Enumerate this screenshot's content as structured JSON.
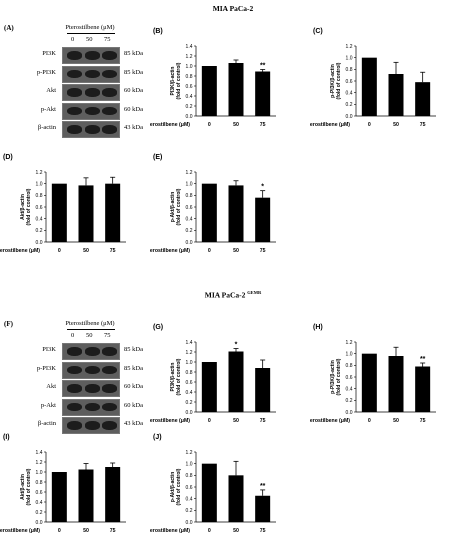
{
  "sections": [
    {
      "title": "MIA PaCa-2",
      "sup": ""
    },
    {
      "title": "MIA PaCa-2",
      "sup": "GEMR"
    }
  ],
  "blots": [
    {
      "panel": "(A)",
      "header": "Pterostilbene (μM)",
      "doses": [
        "0",
        "50",
        "75"
      ],
      "rows": [
        {
          "protein": "PI3K",
          "kda": "85 kDa"
        },
        {
          "protein": "p-PI3K",
          "kda": "85 kDa"
        },
        {
          "protein": "Akt",
          "kda": "60 kDa"
        },
        {
          "protein": "p-Akt",
          "kda": "60 kDa"
        },
        {
          "protein": "β-actin",
          "kda": "43 kDa"
        }
      ]
    },
    {
      "panel": "(F)",
      "header": "Pterostilbene (μM)",
      "doses": [
        "0",
        "50",
        "75"
      ],
      "rows": [
        {
          "protein": "PI3K",
          "kda": "85 kDa"
        },
        {
          "protein": "p-PI3K",
          "kda": "85 kDa"
        },
        {
          "protein": "Akt",
          "kda": "60 kDa"
        },
        {
          "protein": "p-Akt",
          "kda": "60 kDa"
        },
        {
          "protein": "β-actin",
          "kda": "43 kDa"
        }
      ]
    }
  ],
  "chart_data": [
    {
      "panel": "(B)",
      "type": "bar",
      "categories": [
        "0",
        "50",
        "75"
      ],
      "values": [
        1.0,
        1.06,
        0.89
      ],
      "errors": [
        0,
        0.06,
        0.04
      ],
      "sig": [
        "",
        "",
        "**"
      ],
      "ylabel": "PI3K/β-actin (fold of control)",
      "xlabel": "Pterostilbene (μM)",
      "ylim": [
        0,
        1.4
      ],
      "yticks": [
        "0.0",
        "0.2",
        "0.4",
        "0.6",
        "0.8",
        "1.0",
        "1.2",
        "1.4"
      ]
    },
    {
      "panel": "(C)",
      "type": "bar",
      "categories": [
        "0",
        "50",
        "75"
      ],
      "values": [
        1.0,
        0.72,
        0.58
      ],
      "errors": [
        0,
        0.2,
        0.17
      ],
      "sig": [
        "",
        "",
        ""
      ],
      "ylabel": "p-PI3K/β-actin (fold of control)",
      "xlabel": "Pterostilbene (μM)",
      "ylim": [
        0,
        1.2
      ],
      "yticks": [
        "0.0",
        "0.2",
        "0.4",
        "0.6",
        "0.8",
        "1.0",
        "1.2"
      ]
    },
    {
      "panel": "(D)",
      "type": "bar",
      "categories": [
        "0",
        "50",
        "75"
      ],
      "values": [
        1.0,
        0.97,
        1.0
      ],
      "errors": [
        0,
        0.13,
        0.11
      ],
      "sig": [
        "",
        "",
        ""
      ],
      "ylabel": "Akt/β-actin (fold of control)",
      "xlabel": "Pterostilbene (μM)",
      "ylim": [
        0,
        1.2
      ],
      "yticks": [
        "0.0",
        "0.2",
        "0.4",
        "0.6",
        "0.8",
        "1.0",
        "1.2"
      ]
    },
    {
      "panel": "(E)",
      "type": "bar",
      "categories": [
        "0",
        "50",
        "75"
      ],
      "values": [
        1.0,
        0.97,
        0.76
      ],
      "errors": [
        0,
        0.08,
        0.12
      ],
      "sig": [
        "",
        "",
        "*"
      ],
      "ylabel": "p-Akt/β-actin (fold of control)",
      "xlabel": "Pterostilbene (μM)",
      "ylim": [
        0,
        1.2
      ],
      "yticks": [
        "0.0",
        "0.2",
        "0.4",
        "0.6",
        "0.8",
        "1.0",
        "1.2"
      ]
    },
    {
      "panel": "(G)",
      "type": "bar",
      "categories": [
        "0",
        "50",
        "75"
      ],
      "values": [
        1.0,
        1.21,
        0.88
      ],
      "errors": [
        0,
        0.06,
        0.16
      ],
      "sig": [
        "",
        "*",
        ""
      ],
      "ylabel": "PI3K/β-actin (fold of control)",
      "xlabel": "Pterostilbene (μM)",
      "ylim": [
        0,
        1.4
      ],
      "yticks": [
        "0.0",
        "0.2",
        "0.4",
        "0.6",
        "0.8",
        "1.0",
        "1.2",
        "1.4"
      ]
    },
    {
      "panel": "(H)",
      "type": "bar",
      "categories": [
        "0",
        "50",
        "75"
      ],
      "values": [
        1.0,
        0.96,
        0.78
      ],
      "errors": [
        0,
        0.15,
        0.06
      ],
      "sig": [
        "",
        "",
        "**"
      ],
      "ylabel": "p-PI3K/β-actin (fold of control)",
      "xlabel": "Pterostilbene (μM)",
      "ylim": [
        0,
        1.2
      ],
      "yticks": [
        "0.0",
        "0.2",
        "0.4",
        "0.6",
        "0.8",
        "1.0",
        "1.2"
      ]
    },
    {
      "panel": "(I)",
      "type": "bar",
      "categories": [
        "0",
        "50",
        "75"
      ],
      "values": [
        1.0,
        1.05,
        1.1
      ],
      "errors": [
        0,
        0.12,
        0.08
      ],
      "sig": [
        "",
        "",
        ""
      ],
      "ylabel": "Akt/β-actin (fold of control)",
      "xlabel": "Pterostilbene (μM)",
      "ylim": [
        0,
        1.4
      ],
      "yticks": [
        "0.0",
        "0.2",
        "0.4",
        "0.6",
        "0.8",
        "1.0",
        "1.2",
        "1.4"
      ]
    },
    {
      "panel": "(J)",
      "type": "bar",
      "categories": [
        "0",
        "50",
        "75"
      ],
      "values": [
        1.0,
        0.8,
        0.45
      ],
      "errors": [
        0,
        0.24,
        0.1
      ],
      "sig": [
        "",
        "",
        "**"
      ],
      "ylabel": "p-Akt/β-actin (fold of control)",
      "xlabel": "Pterostilbene (μM)",
      "ylim": [
        0,
        1.2
      ],
      "yticks": [
        "0.0",
        "0.2",
        "0.4",
        "0.6",
        "0.8",
        "1.0",
        "1.2"
      ]
    }
  ]
}
